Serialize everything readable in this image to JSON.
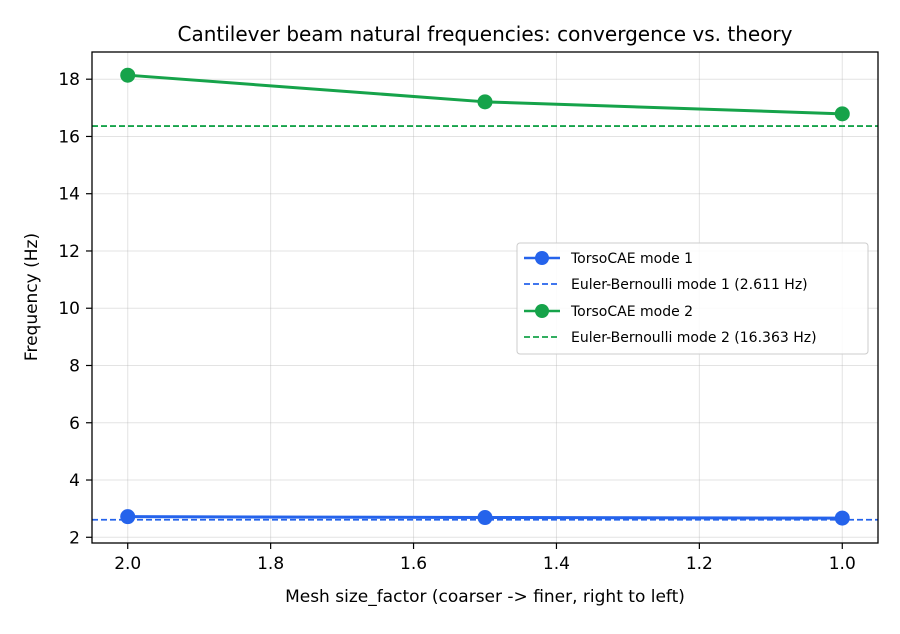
{
  "chart_data": {
    "type": "line",
    "title": "Cantilever beam natural frequencies: convergence vs. theory",
    "xlabel": "Mesh size_factor (coarser -> finer, right to left)",
    "ylabel": "Frequency (Hz)",
    "x": [
      2.0,
      1.5,
      1.0
    ],
    "xlim": [
      2.05,
      0.95
    ],
    "ylim": [
      1.8,
      18.95
    ],
    "x_reversed": true,
    "xticks": [
      2.0,
      1.8,
      1.6,
      1.4,
      1.2,
      1.0
    ],
    "xtick_labels": [
      "2.0",
      "1.8",
      "1.6",
      "1.4",
      "1.2",
      "1.0"
    ],
    "yticks": [
      2,
      4,
      6,
      8,
      10,
      12,
      14,
      16,
      18
    ],
    "ytick_labels": [
      "2",
      "4",
      "6",
      "8",
      "10",
      "12",
      "14",
      "16",
      "18"
    ],
    "grid": true,
    "legend_position": "center-right",
    "series": [
      {
        "name": "TorsoCAE mode 1",
        "kind": "line-marker",
        "color": "#2563eb",
        "values": [
          2.72,
          2.69,
          2.67
        ]
      },
      {
        "name": "Euler-Bernoulli mode 1 (2.611 Hz)",
        "kind": "hline-dashed",
        "color": "#2563eb",
        "value": 2.611
      },
      {
        "name": "TorsoCAE mode 2",
        "kind": "line-marker",
        "color": "#16a34a",
        "values": [
          18.14,
          17.21,
          16.79
        ]
      },
      {
        "name": "Euler-Bernoulli mode 2 (16.363 Hz)",
        "kind": "hline-dashed",
        "color": "#16a34a",
        "value": 16.363
      }
    ]
  }
}
